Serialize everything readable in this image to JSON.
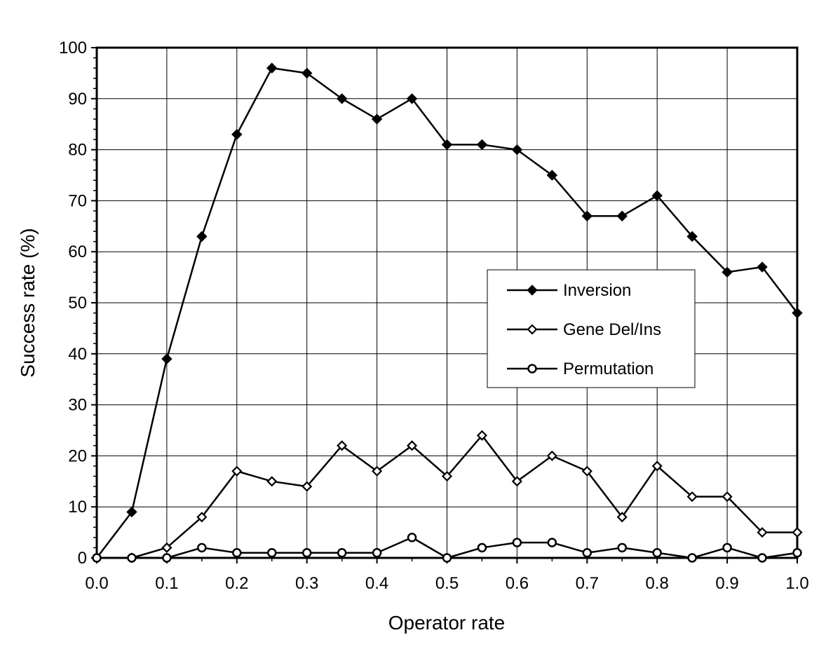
{
  "chart_data": {
    "type": "line",
    "title": "",
    "xlabel": "Operator rate",
    "ylabel": "Success rate (%)",
    "xlim": [
      0,
      1
    ],
    "ylim": [
      0,
      100
    ],
    "x_ticks": [
      "0.0",
      "0.1",
      "0.2",
      "0.3",
      "0.4",
      "0.5",
      "0.6",
      "0.7",
      "0.8",
      "0.9",
      "1.0"
    ],
    "y_ticks": [
      "0",
      "10",
      "20",
      "30",
      "40",
      "50",
      "60",
      "70",
      "80",
      "90",
      "100"
    ],
    "grid": true,
    "legend_position": "center-right",
    "x": [
      0.0,
      0.05,
      0.1,
      0.15,
      0.2,
      0.25,
      0.3,
      0.35,
      0.4,
      0.45,
      0.5,
      0.55,
      0.6,
      0.65,
      0.7,
      0.75,
      0.8,
      0.85,
      0.9,
      0.95,
      1.0
    ],
    "series": [
      {
        "name": "Inversion",
        "marker": "filled-diamond",
        "values": [
          0,
          9,
          39,
          63,
          83,
          96,
          95,
          90,
          86,
          90,
          81,
          81,
          80,
          75,
          67,
          67,
          71,
          63,
          56,
          57,
          48
        ]
      },
      {
        "name": "Gene Del/Ins",
        "marker": "open-diamond",
        "values": [
          0,
          0,
          2,
          8,
          17,
          15,
          14,
          22,
          17,
          22,
          16,
          24,
          15,
          20,
          17,
          8,
          18,
          12,
          12,
          5,
          5
        ]
      },
      {
        "name": "Permutation",
        "marker": "open-circle",
        "values": [
          0,
          0,
          0,
          2,
          1,
          1,
          1,
          1,
          1,
          4,
          0,
          2,
          3,
          3,
          1,
          2,
          1,
          0,
          2,
          0,
          1
        ]
      }
    ]
  }
}
